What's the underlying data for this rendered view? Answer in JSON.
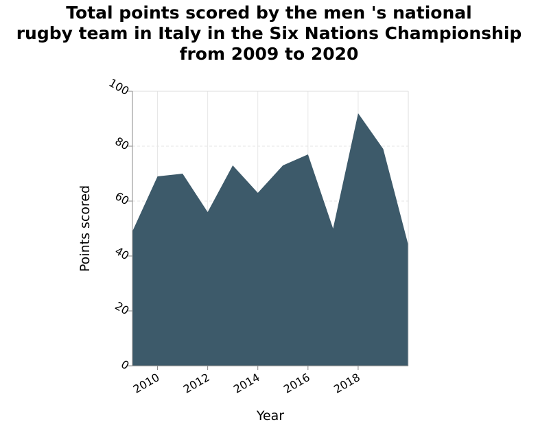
{
  "chart_data": {
    "type": "area",
    "title_lines": [
      "Total points scored by the men 's national",
      "rugby team in Italy in the Six Nations Championship",
      "from 2009 to 2020"
    ],
    "xlabel": "Year",
    "ylabel": "Points scored",
    "x": [
      2009,
      2010,
      2011,
      2012,
      2013,
      2014,
      2015,
      2016,
      2017,
      2018,
      2019,
      2020
    ],
    "values": [
      49,
      69,
      70,
      56,
      73,
      63,
      73,
      77,
      50,
      92,
      79,
      44
    ],
    "xlim": [
      2009,
      2020
    ],
    "ylim": [
      0,
      100
    ],
    "x_ticks": [
      "2010",
      "2012",
      "2014",
      "2016",
      "2018"
    ],
    "y_ticks": [
      "0",
      "20",
      "40",
      "60",
      "80",
      "100"
    ],
    "grid": true,
    "fill_color": "#3d5a6a",
    "grid_color": "#e6e6e6"
  }
}
